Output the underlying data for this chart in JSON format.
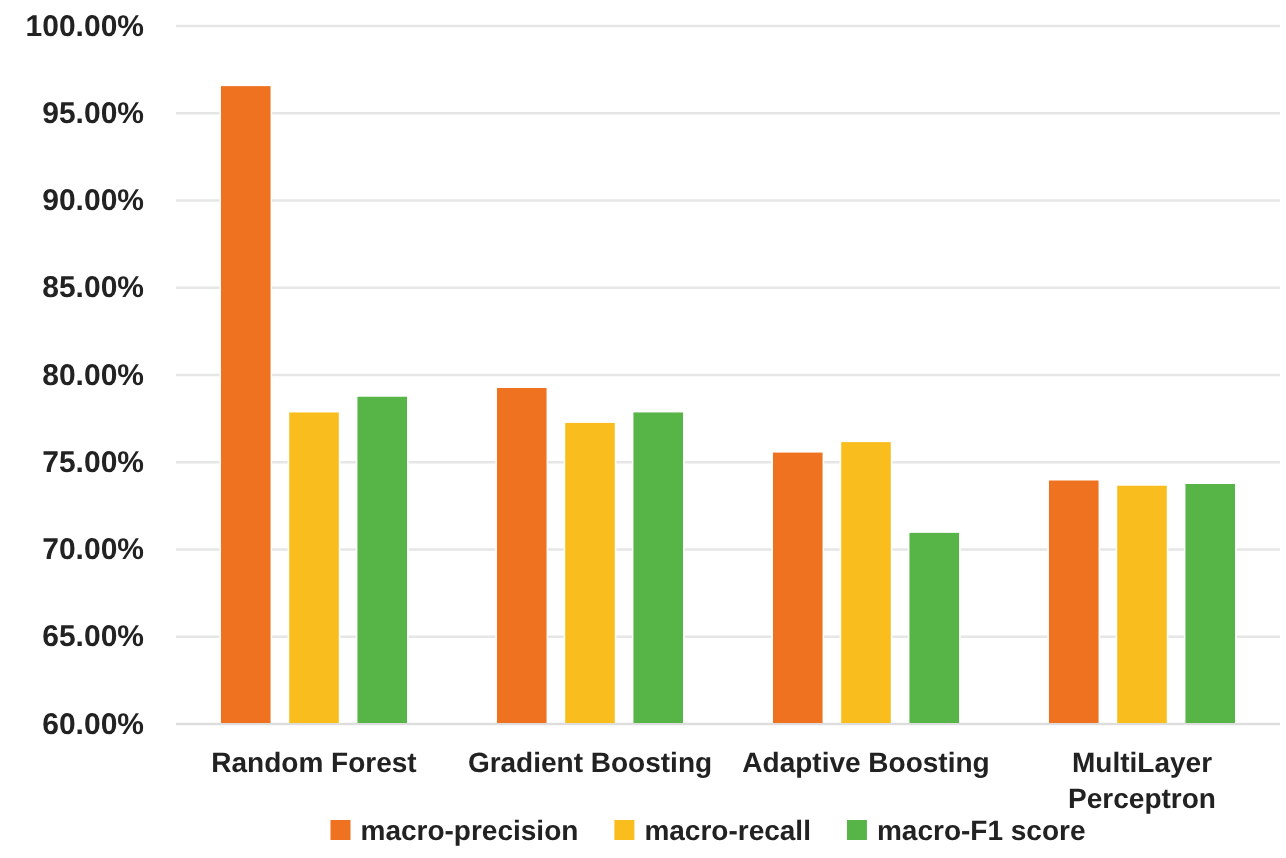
{
  "chart_data": {
    "type": "bar",
    "categories": [
      "Random Forest",
      "Gradient Boosting",
      "Adaptive Boosting",
      "MultiLayer Perceptron"
    ],
    "series": [
      {
        "name": "macro-precision",
        "color": "#ef7220",
        "values": [
          96.6,
          79.3,
          75.6,
          74.0
        ]
      },
      {
        "name": "macro-recall",
        "color": "#f9be1e",
        "values": [
          77.9,
          77.3,
          76.2,
          73.7
        ]
      },
      {
        "name": "macro-F1 score",
        "color": "#57b547",
        "values": [
          78.8,
          77.9,
          71.0,
          73.8
        ]
      }
    ],
    "ylim": [
      60,
      100
    ],
    "yticks": [
      {
        "value": 60,
        "label": "60.00%"
      },
      {
        "value": 65,
        "label": "65.00%"
      },
      {
        "value": 70,
        "label": "70.00%"
      },
      {
        "value": 75,
        "label": "75.00%"
      },
      {
        "value": 80,
        "label": "80.00%"
      },
      {
        "value": 85,
        "label": "85.00%"
      },
      {
        "value": 90,
        "label": "90.00%"
      },
      {
        "value": 95,
        "label": "95.00%"
      },
      {
        "value": 100,
        "label": "100.00%"
      }
    ],
    "grid": "y",
    "legend": "bottom"
  }
}
